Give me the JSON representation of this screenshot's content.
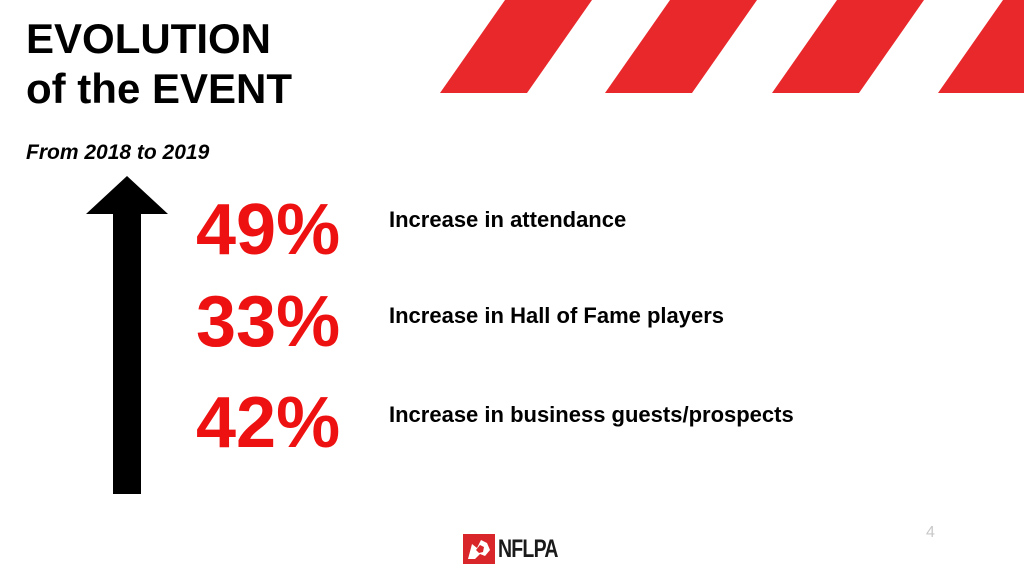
{
  "slide": {
    "title_line1": "EVOLUTION",
    "title_line2": "of the EVENT",
    "subtitle": "From 2018 to 2019",
    "page_number": "4",
    "accent_color": "#ee1111",
    "decoration_color": "#e8282b"
  },
  "stats": [
    {
      "value": "49%",
      "description": "Increase in attendance"
    },
    {
      "value": "33%",
      "description": "Increase in Hall of Fame players"
    },
    {
      "value": "42%",
      "description": "Increase in business guests/prospects"
    }
  ],
  "logo": {
    "text": "NFLPA",
    "icon": "nflpa-shield-icon"
  },
  "arrow": {
    "icon": "up-arrow-icon",
    "direction": "up"
  }
}
